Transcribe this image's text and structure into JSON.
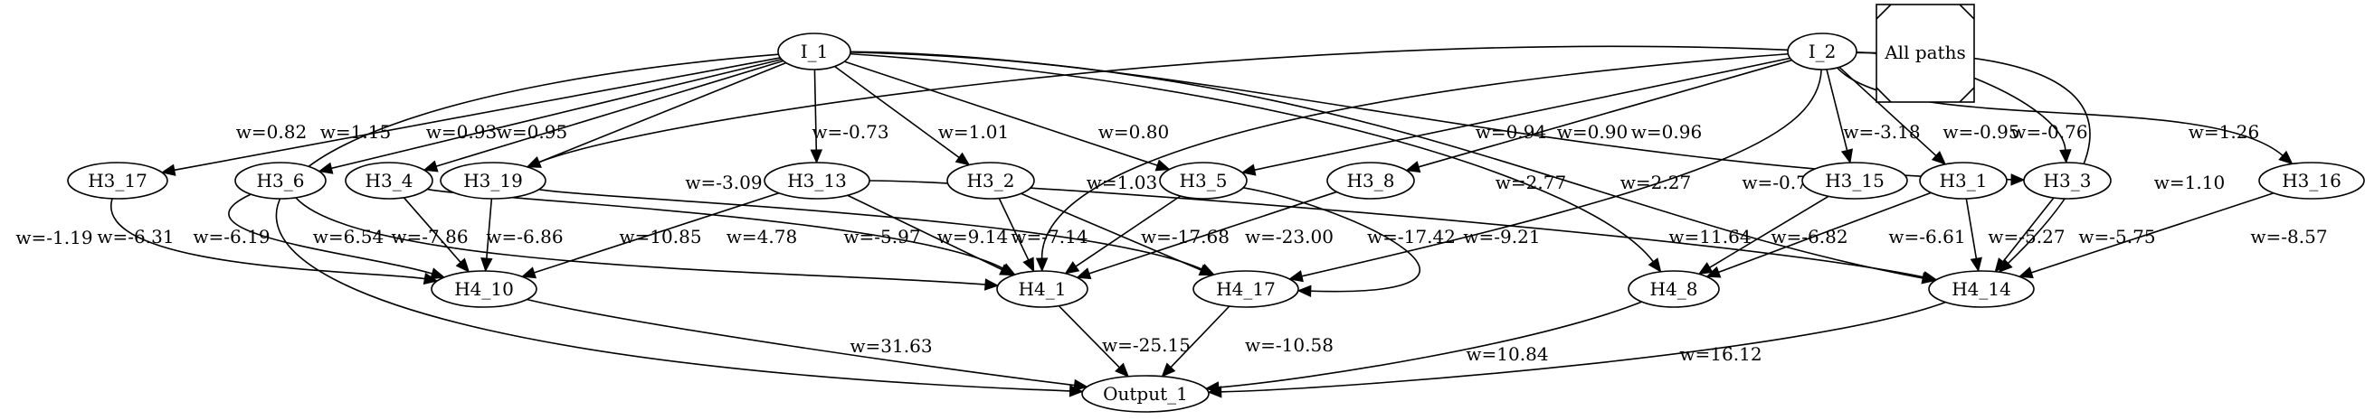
{
  "title": "All paths",
  "nodes": [
    {
      "id": "I_1",
      "label": "I_1"
    },
    {
      "id": "I_2",
      "label": "I_2"
    },
    {
      "id": "H3_17",
      "label": "H3_17"
    },
    {
      "id": "H3_6",
      "label": "H3_6"
    },
    {
      "id": "H3_4",
      "label": "H3_4"
    },
    {
      "id": "H3_19",
      "label": "H3_19"
    },
    {
      "id": "H3_13",
      "label": "H3_13"
    },
    {
      "id": "H3_2",
      "label": "H3_2"
    },
    {
      "id": "H3_5",
      "label": "H3_5"
    },
    {
      "id": "H3_8",
      "label": "H3_8"
    },
    {
      "id": "H3_15",
      "label": "H3_15"
    },
    {
      "id": "H3_1",
      "label": "H3_1"
    },
    {
      "id": "H3_3",
      "label": "H3_3"
    },
    {
      "id": "H3_16",
      "label": "H3_16"
    },
    {
      "id": "H4_10",
      "label": "H4_10"
    },
    {
      "id": "H4_1",
      "label": "H4_1"
    },
    {
      "id": "H4_17",
      "label": "H4_17"
    },
    {
      "id": "H4_8",
      "label": "H4_8"
    },
    {
      "id": "H4_14",
      "label": "H4_14"
    },
    {
      "id": "Output_1",
      "label": "Output_1"
    }
  ],
  "edges": [
    {
      "from": "I_1",
      "to": "H3_17",
      "label": "w=0.82"
    },
    {
      "from": "I_1",
      "to": "H3_6",
      "label": "w=1.15"
    },
    {
      "from": "I_1",
      "to": "H3_4",
      "label": "w=0.93"
    },
    {
      "from": "I_1",
      "to": "H3_19",
      "label": "w=0.95"
    },
    {
      "from": "I_1",
      "to": "H3_13",
      "label": "w=-0.73"
    },
    {
      "from": "I_1",
      "to": "H3_2",
      "label": "w=1.01"
    },
    {
      "from": "I_1",
      "to": "H3_5",
      "label": "w=0.80"
    },
    {
      "from": "I_1",
      "to": "H3_3",
      "label": "w=0.96"
    },
    {
      "from": "I_1",
      "to": "H4_8",
      "label": "w=2.77"
    },
    {
      "from": "I_1",
      "to": "H4_14",
      "label": "w=2.27"
    },
    {
      "from": "I_1",
      "to": "Output_1",
      "label": "w=-1.19"
    },
    {
      "from": "I_2",
      "to": "H3_19",
      "label": "w=-3.09"
    },
    {
      "from": "I_2",
      "to": "H4_1",
      "label": "w=1.03"
    },
    {
      "from": "I_2",
      "to": "H3_5",
      "label": "w=0.94"
    },
    {
      "from": "I_2",
      "to": "H3_8",
      "label": "w=0.90"
    },
    {
      "from": "I_2",
      "to": "H4_17",
      "label": "w=-0.70"
    },
    {
      "from": "I_2",
      "to": "H3_15",
      "label": "w=-3.18"
    },
    {
      "from": "I_2",
      "to": "H3_1",
      "label": "w=-0.95"
    },
    {
      "from": "I_2",
      "to": "H3_3",
      "label": "w=-0.76"
    },
    {
      "from": "I_2",
      "to": "H4_14",
      "label": "w=1.10"
    },
    {
      "from": "I_2",
      "to": "H3_16",
      "label": "w=1.26"
    },
    {
      "from": "H3_17",
      "to": "H4_10",
      "label": "w=-6.31"
    },
    {
      "from": "H3_6",
      "to": "H4_10",
      "label": "w=-6.19"
    },
    {
      "from": "H3_6",
      "to": "H4_1",
      "label": "w=6.54"
    },
    {
      "from": "H3_4",
      "to": "H4_10",
      "label": "w=-7.86"
    },
    {
      "from": "H3_4",
      "to": "H4_1",
      "label": "w=4.78"
    },
    {
      "from": "H3_19",
      "to": "H4_10",
      "label": "w=-6.86"
    },
    {
      "from": "H3_19",
      "to": "H4_17",
      "label": "w=9.14"
    },
    {
      "from": "H3_13",
      "to": "H4_10",
      "label": "w=10.85"
    },
    {
      "from": "H3_13",
      "to": "H4_1",
      "label": "w=-5.97"
    },
    {
      "from": "H3_13",
      "to": "H4_14",
      "label": "w=11.64"
    },
    {
      "from": "H3_2",
      "to": "H4_1",
      "label": "w=-7.14"
    },
    {
      "from": "H3_2",
      "to": "H4_17",
      "label": "w=-23.00"
    },
    {
      "from": "H3_5",
      "to": "H4_1",
      "label": "w=-17.68"
    },
    {
      "from": "H3_5",
      "to": "H4_17",
      "label": "w=-9.21"
    },
    {
      "from": "H3_8",
      "to": "H4_1",
      "label": "w=-17.42"
    },
    {
      "from": "H3_15",
      "to": "H4_8",
      "label": "w=-6.82"
    },
    {
      "from": "H3_1",
      "to": "H4_8",
      "label": "w=-6.61"
    },
    {
      "from": "H3_1",
      "to": "H4_14",
      "label": "w=-5.27"
    },
    {
      "from": "H3_3",
      "to": "H4_14",
      "label": "w=-5.75"
    },
    {
      "from": "H3_16",
      "to": "H4_14",
      "label": "w=-8.57"
    },
    {
      "from": "H4_10",
      "to": "Output_1",
      "label": "w=31.63"
    },
    {
      "from": "H4_1",
      "to": "Output_1",
      "label": "w=-25.15"
    },
    {
      "from": "H4_17",
      "to": "Output_1",
      "label": "w=-10.58"
    },
    {
      "from": "H4_8",
      "to": "Output_1",
      "label": "w=10.84"
    },
    {
      "from": "H4_14",
      "to": "Output_1",
      "label": "w=16.12"
    }
  ]
}
